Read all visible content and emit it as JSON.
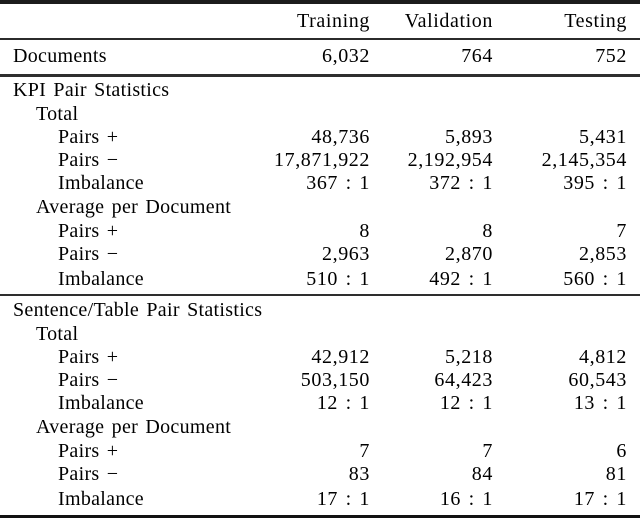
{
  "colors": {
    "background": "#ffffff",
    "text": "#000000",
    "rule": "#1c1c1c"
  },
  "columns": {
    "training": "Training",
    "validation": "Validation",
    "testing": "Testing"
  },
  "rows": [
    {
      "label": "Documents",
      "t": "6,032",
      "v": "764",
      "s": "752"
    },
    {
      "label": "KPI Pair Statistics"
    },
    {
      "label": "Total"
    },
    {
      "label": "Pairs +",
      "t": "48,736",
      "v": "5,893",
      "s": "5,431"
    },
    {
      "label": "Pairs −",
      "t": "17,871,922",
      "v": "2,192,954",
      "s": "2,145,354"
    },
    {
      "label": "Imbalance",
      "t": "367 : 1",
      "v": "372 : 1",
      "s": "395 : 1"
    },
    {
      "label": "Average per Document"
    },
    {
      "label": "Pairs +",
      "t": "8",
      "v": "8",
      "s": "7"
    },
    {
      "label": "Pairs −",
      "t": "2,963",
      "v": "2,870",
      "s": "2,853"
    },
    {
      "label": "Imbalance",
      "t": "510 : 1",
      "v": "492 : 1",
      "s": "560 : 1"
    },
    {
      "label": "Sentence/Table Pair Statistics"
    },
    {
      "label": "Total"
    },
    {
      "label": "Pairs +",
      "t": "42,912",
      "v": "5,218",
      "s": "4,812"
    },
    {
      "label": "Pairs −",
      "t": "503,150",
      "v": "64,423",
      "s": "60,543"
    },
    {
      "label": "Imbalance",
      "t": "12 : 1",
      "v": "12 : 1",
      "s": "13 : 1"
    },
    {
      "label": "Average per Document"
    },
    {
      "label": "Pairs +",
      "t": "7",
      "v": "7",
      "s": "6"
    },
    {
      "label": "Pairs −",
      "t": "83",
      "v": "84",
      "s": "81"
    },
    {
      "label": "Imbalance",
      "t": "17 : 1",
      "v": "16 : 1",
      "s": "17 : 1"
    }
  ]
}
